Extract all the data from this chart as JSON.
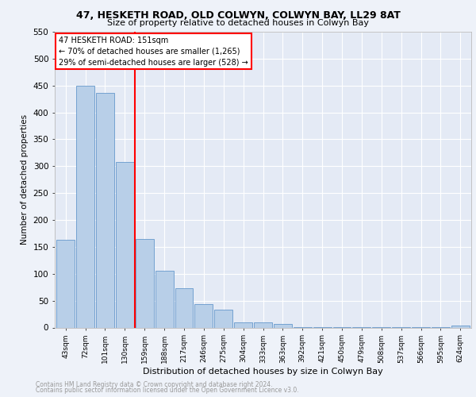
{
  "title1": "47, HESKETH ROAD, OLD COLWYN, COLWYN BAY, LL29 8AT",
  "title2": "Size of property relative to detached houses in Colwyn Bay",
  "xlabel": "Distribution of detached houses by size in Colwyn Bay",
  "ylabel": "Number of detached properties",
  "categories": [
    "43sqm",
    "72sqm",
    "101sqm",
    "130sqm",
    "159sqm",
    "188sqm",
    "217sqm",
    "246sqm",
    "275sqm",
    "304sqm",
    "333sqm",
    "363sqm",
    "392sqm",
    "421sqm",
    "450sqm",
    "479sqm",
    "508sqm",
    "537sqm",
    "566sqm",
    "595sqm",
    "624sqm"
  ],
  "values": [
    163,
    449,
    436,
    308,
    165,
    106,
    73,
    44,
    33,
    10,
    10,
    7,
    1,
    1,
    1,
    1,
    1,
    1,
    1,
    1,
    4
  ],
  "bar_color": "#b8cfe8",
  "bar_edge_color": "#6699cc",
  "annotation_title": "47 HESKETH ROAD: 151sqm",
  "annotation_line1": "← 70% of detached houses are smaller (1,265)",
  "annotation_line2": "29% of semi-detached houses are larger (528) →",
  "footer1": "Contains HM Land Registry data © Crown copyright and database right 2024.",
  "footer2": "Contains public sector information licensed under the Open Government Licence v3.0.",
  "ylim": [
    0,
    550
  ],
  "yticks": [
    0,
    50,
    100,
    150,
    200,
    250,
    300,
    350,
    400,
    450,
    500,
    550
  ],
  "bg_color": "#eef2f9",
  "plot_bg": "#e4eaf5",
  "red_line_index": 4
}
